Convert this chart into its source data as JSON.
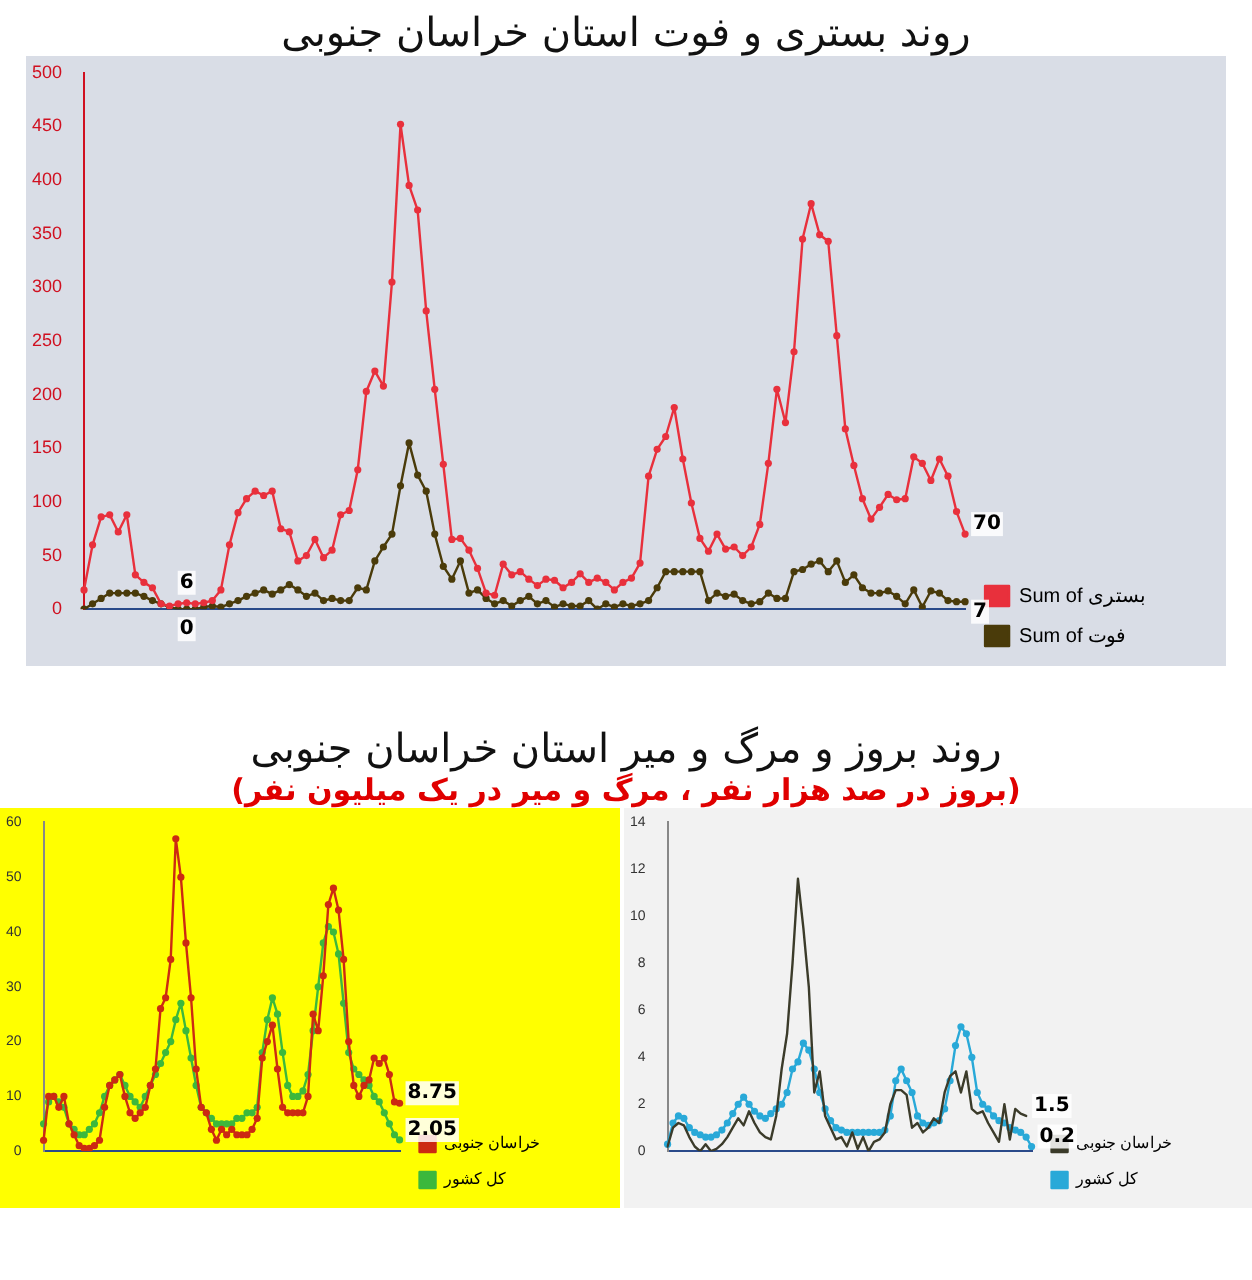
{
  "chart_data": [
    {
      "type": "line",
      "title": "روند بستری و فوت استان خراسان جنوبی",
      "categories": [
        null,
        null,
        null,
        null,
        null,
        null,
        null,
        null,
        null,
        null,
        null,
        null,
        null,
        null,
        null,
        null,
        null,
        null,
        null,
        null,
        null,
        null,
        null,
        null,
        null,
        null,
        null,
        null,
        null,
        null,
        null,
        null,
        null,
        null,
        null,
        null,
        null,
        null,
        null,
        null,
        null,
        null,
        null,
        null,
        null,
        null,
        null,
        null,
        null,
        null,
        null,
        null,
        null,
        null,
        null,
        null,
        null,
        null,
        null,
        null,
        null,
        null,
        null,
        null,
        null,
        null,
        null,
        null,
        null,
        null,
        null,
        null,
        null,
        null,
        null,
        null,
        null,
        null,
        null,
        null,
        null,
        null,
        null,
        null,
        null,
        null,
        null,
        null,
        null,
        null,
        null,
        null,
        null,
        null,
        null,
        null,
        null,
        null,
        null,
        null,
        null,
        null,
        null,
        null
      ],
      "ylim": [
        0,
        500
      ],
      "yticks": [
        0,
        50,
        100,
        150,
        200,
        250,
        300,
        350,
        400,
        450,
        500
      ],
      "legend": "bottom right",
      "marker": "circle",
      "grid": false,
      "series": [
        {
          "name": "Sum of بستری",
          "color": "#e8303c",
          "values": [
            18,
            60,
            86,
            88,
            72,
            88,
            32,
            25,
            20,
            5,
            3,
            5,
            6,
            5,
            6,
            8,
            18,
            60,
            90,
            103,
            110,
            106,
            110,
            75,
            72,
            45,
            50,
            65,
            48,
            55,
            88,
            92,
            130,
            203,
            222,
            208,
            305,
            452,
            395,
            372,
            278,
            205,
            135,
            65,
            66,
            55,
            38,
            15,
            13,
            42,
            32,
            35,
            28,
            22,
            28,
            27,
            20,
            25,
            33,
            25,
            29,
            25,
            18,
            25,
            29,
            43,
            124,
            149,
            161,
            188,
            140,
            99,
            66,
            54,
            70,
            56,
            58,
            50,
            58,
            79,
            136,
            205,
            174,
            240,
            345,
            378,
            349,
            343,
            255,
            168,
            134,
            103,
            84,
            95,
            107,
            102,
            103,
            142,
            136,
            120,
            140,
            124,
            91,
            70
          ],
          "value_labels": [
            null,
            null,
            null,
            null,
            null,
            null,
            null,
            null,
            null,
            null,
            null,
            null,
            "6",
            null,
            null,
            null,
            null,
            null,
            null,
            null,
            null,
            null,
            null,
            null,
            null,
            null,
            null,
            null,
            null,
            null,
            null,
            null,
            null,
            null,
            null,
            null,
            null,
            null,
            null,
            null,
            null,
            null,
            null,
            null,
            null,
            null,
            null,
            null,
            null,
            null,
            null,
            null,
            null,
            null,
            null,
            null,
            null,
            null,
            null,
            null,
            null,
            null,
            null,
            null,
            null,
            null,
            null,
            null,
            null,
            null,
            null,
            null,
            null,
            null,
            null,
            null,
            null,
            null,
            null,
            null,
            null,
            null,
            null,
            null,
            null,
            null,
            null,
            null,
            null,
            null,
            null,
            null,
            null,
            null,
            null,
            null,
            null,
            null,
            null,
            null,
            null,
            null,
            null,
            "70"
          ]
        },
        {
          "name": "Sum of فوت",
          "color": "#4a3b0a",
          "values": [
            0,
            5,
            10,
            15,
            15,
            15,
            15,
            12,
            8,
            5,
            2,
            0,
            0,
            0,
            2,
            3,
            2,
            5,
            8,
            12,
            15,
            18,
            14,
            18,
            23,
            18,
            12,
            15,
            8,
            10,
            8,
            8,
            20,
            18,
            45,
            58,
            70,
            115,
            155,
            125,
            110,
            70,
            40,
            28,
            45,
            15,
            18,
            10,
            5,
            8,
            3,
            8,
            12,
            5,
            8,
            2,
            5,
            3,
            3,
            8,
            0,
            5,
            2,
            5,
            3,
            5,
            8,
            20,
            35,
            35,
            35,
            35,
            35,
            8,
            15,
            12,
            14,
            8,
            5,
            7,
            15,
            10,
            10,
            35,
            37,
            42,
            45,
            35,
            45,
            25,
            32,
            20,
            15,
            15,
            17,
            12,
            5,
            18,
            2,
            17,
            15,
            8,
            7,
            7
          ],
          "value_labels": [
            null,
            null,
            null,
            null,
            null,
            null,
            null,
            null,
            null,
            null,
            null,
            null,
            "0",
            null,
            null,
            null,
            null,
            null,
            null,
            null,
            null,
            null,
            null,
            null,
            null,
            null,
            null,
            null,
            null,
            null,
            null,
            null,
            null,
            null,
            null,
            null,
            null,
            null,
            null,
            null,
            null,
            null,
            null,
            null,
            null,
            null,
            null,
            null,
            null,
            null,
            null,
            null,
            null,
            null,
            null,
            null,
            null,
            null,
            null,
            null,
            null,
            null,
            null,
            null,
            null,
            null,
            null,
            null,
            null,
            null,
            null,
            null,
            null,
            null,
            null,
            null,
            null,
            null,
            null,
            null,
            null,
            null,
            null,
            null,
            null,
            null,
            null,
            null,
            null,
            null,
            null,
            null,
            null,
            null,
            null,
            null,
            null,
            null,
            null,
            null,
            null,
            null,
            null,
            "7"
          ]
        }
      ]
    },
    {
      "type": "line",
      "title": "روند بروز و مرگ و میر استان خراسان جنوبی",
      "subtitle": "(بروز در صد هزار نفر ، مرگ و میر در یک میلیون نفر)",
      "categories": [
        null,
        null,
        null,
        null,
        null,
        null,
        null,
        null,
        null,
        null,
        null,
        null,
        null,
        null,
        null,
        null,
        null,
        null,
        null,
        null,
        null,
        null,
        null,
        null,
        null,
        null,
        null,
        null,
        null,
        null,
        null,
        null,
        null,
        null,
        null,
        null,
        null,
        null,
        null,
        null,
        null,
        null,
        null,
        null,
        null,
        null,
        null,
        null,
        null,
        null,
        null,
        null,
        null,
        null,
        null,
        null,
        null,
        null,
        null,
        null,
        null,
        null,
        null,
        null,
        null,
        null,
        null,
        null,
        null,
        null,
        null
      ],
      "ylim": [
        0,
        60
      ],
      "yticks": [
        0,
        10,
        20,
        30,
        40,
        50,
        60
      ],
      "legend": "bottom right",
      "marker": "circle",
      "grid": false,
      "series": [
        {
          "name": "خراسان جنوبی",
          "color": "#cc2a12",
          "values": [
            2,
            10,
            10,
            8,
            10,
            5,
            3,
            1,
            0.5,
            0.5,
            1,
            2,
            8,
            12,
            13,
            14,
            10,
            7,
            6,
            7,
            8,
            12,
            15,
            26,
            28,
            35,
            57,
            50,
            38,
            28,
            15,
            8,
            7,
            4,
            2,
            4,
            3,
            4,
            3,
            3,
            3,
            4,
            6,
            17,
            20,
            23,
            15,
            8,
            7,
            7,
            7,
            7,
            10,
            25,
            22,
            32,
            45,
            48,
            44,
            35,
            20,
            12,
            10,
            12,
            13,
            17,
            16,
            17,
            14,
            9,
            8.75
          ],
          "value_labels": [
            null,
            null,
            null,
            null,
            null,
            null,
            null,
            null,
            null,
            null,
            null,
            null,
            null,
            null,
            null,
            null,
            null,
            null,
            null,
            null,
            null,
            null,
            null,
            null,
            null,
            null,
            null,
            null,
            null,
            null,
            null,
            null,
            null,
            null,
            null,
            null,
            null,
            null,
            null,
            null,
            null,
            null,
            null,
            null,
            null,
            null,
            null,
            null,
            null,
            null,
            null,
            null,
            null,
            null,
            null,
            null,
            null,
            null,
            null,
            null,
            null,
            null,
            null,
            null,
            null,
            null,
            null,
            null,
            null,
            null,
            "8.75"
          ]
        },
        {
          "name": "کل کشور",
          "color": "#3cb83c",
          "values": [
            5,
            9,
            10,
            9,
            8,
            5,
            4,
            3,
            3,
            4,
            5,
            7,
            10,
            12,
            13,
            14,
            12,
            10,
            9,
            8,
            10,
            12,
            14,
            16,
            18,
            20,
            24,
            27,
            22,
            17,
            12,
            8,
            7,
            6,
            5,
            5,
            5,
            5,
            6,
            6,
            7,
            7,
            8,
            18,
            24,
            28,
            25,
            18,
            12,
            10,
            10,
            11,
            14,
            22,
            30,
            38,
            41,
            40,
            36,
            27,
            18,
            15,
            14,
            13,
            12,
            10,
            9,
            7,
            5,
            3,
            2.05
          ],
          "value_labels": [
            null,
            null,
            null,
            null,
            null,
            null,
            null,
            null,
            null,
            null,
            null,
            null,
            null,
            null,
            null,
            null,
            null,
            null,
            null,
            null,
            null,
            null,
            null,
            null,
            null,
            null,
            null,
            null,
            null,
            null,
            null,
            null,
            null,
            null,
            null,
            null,
            null,
            null,
            null,
            null,
            null,
            null,
            null,
            null,
            null,
            null,
            null,
            null,
            null,
            null,
            null,
            null,
            null,
            null,
            null,
            null,
            null,
            null,
            null,
            null,
            null,
            null,
            null,
            null,
            null,
            null,
            null,
            null,
            null,
            null,
            "2.05"
          ]
        }
      ]
    },
    {
      "type": "line",
      "categories": [
        null,
        null,
        null,
        null,
        null,
        null,
        null,
        null,
        null,
        null,
        null,
        null,
        null,
        null,
        null,
        null,
        null,
        null,
        null,
        null,
        null,
        null,
        null,
        null,
        null,
        null,
        null,
        null,
        null,
        null,
        null,
        null,
        null,
        null,
        null,
        null,
        null,
        null,
        null,
        null,
        null,
        null,
        null,
        null,
        null,
        null,
        null,
        null,
        null,
        null,
        null,
        null,
        null,
        null,
        null,
        null,
        null,
        null,
        null,
        null,
        null,
        null,
        null,
        null,
        null,
        null,
        null,
        null
      ],
      "ylim": [
        0,
        14
      ],
      "yticks": [
        0,
        2,
        4,
        6,
        8,
        10,
        12,
        14
      ],
      "legend": "bottom right",
      "grid": false,
      "series": [
        {
          "name": "خراسان جنوبی",
          "color": "#3b3b2a",
          "marker": "none",
          "values": [
            0.2,
            1.0,
            1.2,
            1.1,
            0.6,
            0.2,
            0,
            0.3,
            0,
            0.1,
            0.3,
            0.6,
            1.0,
            1.4,
            1.1,
            1.7,
            1.2,
            0.8,
            0.6,
            0.5,
            1.5,
            3.5,
            5.0,
            8.0,
            11.6,
            9.5,
            7.0,
            2.5,
            3.4,
            1.5,
            1.0,
            0.5,
            0.6,
            0.2,
            0.8,
            0.1,
            0.6,
            0,
            0.4,
            0.5,
            0.8,
            2.0,
            2.6,
            2.6,
            2.4,
            1.0,
            1.2,
            0.8,
            1.0,
            1.4,
            1.2,
            2.5,
            3.2,
            3.4,
            2.5,
            3.4,
            1.8,
            1.6,
            1.7,
            1.2,
            0.8,
            0.4,
            2.0,
            0.5,
            1.8,
            1.6,
            1.5,
            null
          ],
          "value_labels": [
            null,
            null,
            null,
            null,
            null,
            null,
            null,
            null,
            null,
            null,
            null,
            null,
            null,
            null,
            null,
            null,
            null,
            null,
            null,
            null,
            null,
            null,
            null,
            null,
            null,
            null,
            null,
            null,
            null,
            null,
            null,
            null,
            null,
            null,
            null,
            null,
            null,
            null,
            null,
            null,
            null,
            null,
            null,
            null,
            null,
            null,
            null,
            null,
            null,
            null,
            null,
            null,
            null,
            null,
            null,
            null,
            null,
            null,
            null,
            null,
            null,
            null,
            null,
            null,
            null,
            null,
            "1.5",
            null
          ]
        },
        {
          "name": "کل کشور",
          "color": "#29a9d8",
          "marker": "circle",
          "values": [
            0.3,
            1.2,
            1.5,
            1.4,
            1.0,
            0.8,
            0.7,
            0.6,
            0.6,
            0.7,
            0.9,
            1.2,
            1.6,
            2.0,
            2.3,
            2.0,
            1.7,
            1.5,
            1.4,
            1.6,
            1.8,
            2.0,
            2.5,
            3.5,
            3.8,
            4.6,
            4.3,
            3.5,
            2.5,
            1.8,
            1.3,
            1.0,
            0.9,
            0.8,
            0.8,
            0.8,
            0.8,
            0.8,
            0.8,
            0.8,
            0.9,
            1.5,
            3.0,
            3.5,
            3.0,
            2.5,
            1.5,
            1.2,
            1.1,
            1.2,
            1.3,
            1.8,
            3.0,
            4.5,
            5.3,
            5.0,
            4.0,
            2.5,
            2.0,
            1.8,
            1.5,
            1.3,
            1.2,
            1.0,
            0.9,
            0.8,
            0.6,
            0.2
          ],
          "value_labels": [
            null,
            null,
            null,
            null,
            null,
            null,
            null,
            null,
            null,
            null,
            null,
            null,
            null,
            null,
            null,
            null,
            null,
            null,
            null,
            null,
            null,
            null,
            null,
            null,
            null,
            null,
            null,
            null,
            null,
            null,
            null,
            null,
            null,
            null,
            null,
            null,
            null,
            null,
            null,
            null,
            null,
            null,
            null,
            null,
            null,
            null,
            null,
            null,
            null,
            null,
            null,
            null,
            null,
            null,
            null,
            null,
            null,
            null,
            null,
            null,
            null,
            null,
            null,
            null,
            null,
            null,
            null,
            "0.2"
          ]
        }
      ]
    }
  ]
}
